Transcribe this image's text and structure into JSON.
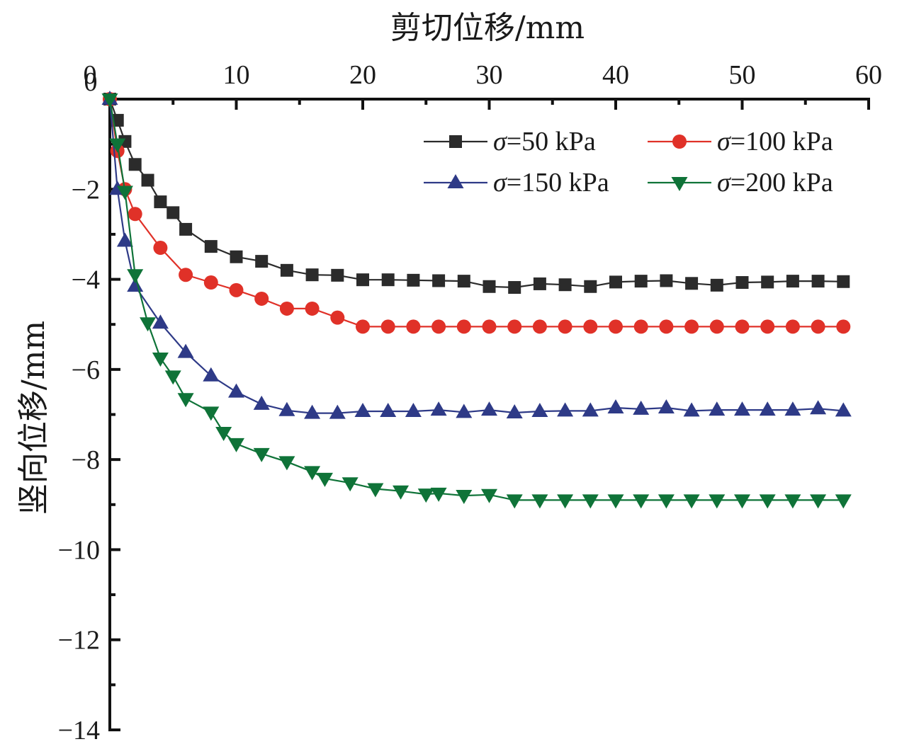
{
  "chart_data": {
    "type": "line",
    "title": "",
    "xlabel": "剪切位移/mm",
    "ylabel": "竖向位移/mm",
    "xlim": [
      0,
      60
    ],
    "ylim": [
      -14,
      0
    ],
    "x_axis_position": "top",
    "x_ticks": [
      0,
      10,
      20,
      30,
      40,
      50,
      60
    ],
    "x_tick_labels": [
      "0",
      "10",
      "20",
      "30",
      "40",
      "50",
      "60"
    ],
    "y_ticks": [
      0,
      -2,
      -4,
      -6,
      -8,
      -10,
      -12,
      -14
    ],
    "y_tick_labels": [
      "0",
      "−2",
      "−4",
      "−6",
      "−8",
      "−10",
      "−12",
      "−14"
    ],
    "grid": false,
    "legend_position": "top-right",
    "legend_columns": 2,
    "series": [
      {
        "name": "σ=50 kPa",
        "sigma_symbol": "σ",
        "label_rest": "=50 kPa",
        "color": "#2b2b2b",
        "marker": "square",
        "x": [
          0,
          0.6,
          1.2,
          2,
          3,
          4,
          5,
          6,
          8,
          10,
          12,
          14,
          16,
          18,
          20,
          22,
          24,
          26,
          28,
          30,
          32,
          34,
          36,
          38,
          40,
          42,
          44,
          46,
          48,
          50,
          52,
          54,
          56,
          58
        ],
        "y": [
          0,
          -0.47,
          -0.94,
          -1.45,
          -1.8,
          -2.28,
          -2.52,
          -2.89,
          -3.27,
          -3.5,
          -3.6,
          -3.8,
          -3.9,
          -3.91,
          -4.01,
          -4.01,
          -4.02,
          -4.03,
          -4.04,
          -4.16,
          -4.18,
          -4.1,
          -4.12,
          -4.16,
          -4.06,
          -4.04,
          -4.03,
          -4.09,
          -4.13,
          -4.07,
          -4.06,
          -4.04,
          -4.04,
          -4.05
        ]
      },
      {
        "name": "σ=100 kPa",
        "sigma_symbol": "σ",
        "label_rest": "=100 kPa",
        "color": "#e03128",
        "marker": "circle",
        "x": [
          0,
          0.6,
          1.2,
          2,
          4,
          6,
          8,
          10,
          12,
          14,
          16,
          18,
          20,
          22,
          24,
          26,
          28,
          30,
          32,
          34,
          36,
          38,
          40,
          42,
          44,
          46,
          48,
          50,
          52,
          54,
          56,
          58
        ],
        "y": [
          0,
          -1.15,
          -2.0,
          -2.55,
          -3.3,
          -3.9,
          -4.07,
          -4.24,
          -4.43,
          -4.65,
          -4.65,
          -4.85,
          -5.05,
          -5.05,
          -5.05,
          -5.05,
          -5.05,
          -5.05,
          -5.05,
          -5.05,
          -5.05,
          -5.05,
          -5.05,
          -5.05,
          -5.05,
          -5.05,
          -5.05,
          -5.05,
          -5.05,
          -5.05,
          -5.05,
          -5.05
        ]
      },
      {
        "name": "σ=150 kPa",
        "sigma_symbol": "σ",
        "label_rest": "=150 kPa",
        "color": "#2e3a87",
        "marker": "triangle-up",
        "x": [
          0,
          0.6,
          1.2,
          2,
          4,
          6,
          8,
          10,
          12,
          14,
          16,
          18,
          20,
          22,
          24,
          26,
          28,
          30,
          32,
          34,
          36,
          38,
          40,
          42,
          44,
          46,
          48,
          50,
          52,
          54,
          56,
          58
        ],
        "y": [
          0,
          -2.0,
          -3.15,
          -4.15,
          -4.97,
          -5.62,
          -6.14,
          -6.5,
          -6.77,
          -6.91,
          -6.97,
          -6.97,
          -6.93,
          -6.93,
          -6.93,
          -6.9,
          -6.95,
          -6.9,
          -6.96,
          -6.93,
          -6.92,
          -6.92,
          -6.85,
          -6.88,
          -6.85,
          -6.92,
          -6.9,
          -6.9,
          -6.9,
          -6.9,
          -6.87,
          -6.92
        ]
      },
      {
        "name": "σ=200 kPa",
        "sigma_symbol": "σ",
        "label_rest": "=200 kPa",
        "color": "#0f7338",
        "marker": "triangle-down",
        "x": [
          0,
          0.6,
          1.2,
          2,
          3,
          4,
          5,
          6,
          8,
          9,
          10,
          12,
          14,
          16,
          17,
          19,
          21,
          23,
          25,
          26,
          28,
          30,
          32,
          34,
          36,
          38,
          40,
          42,
          44,
          46,
          48,
          50,
          52,
          54,
          56,
          58
        ],
        "y": [
          0,
          -1.0,
          -2.05,
          -3.9,
          -4.97,
          -5.75,
          -6.15,
          -6.65,
          -6.95,
          -7.4,
          -7.65,
          -7.87,
          -8.05,
          -8.27,
          -8.42,
          -8.52,
          -8.65,
          -8.7,
          -8.77,
          -8.75,
          -8.8,
          -8.78,
          -8.9,
          -8.9,
          -8.9,
          -8.9,
          -8.9,
          -8.9,
          -8.9,
          -8.9,
          -8.9,
          -8.9,
          -8.9,
          -8.9,
          -8.9,
          -8.9
        ]
      }
    ]
  }
}
